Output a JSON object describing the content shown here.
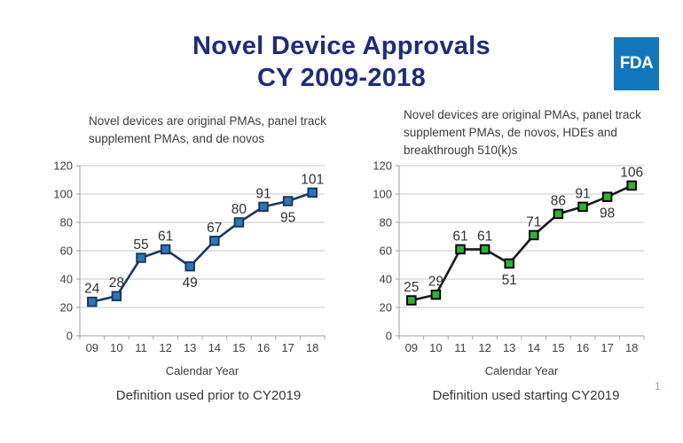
{
  "page": {
    "title_line1": "Novel Device Approvals",
    "title_line2": "CY 2009-2018",
    "page_number": "1"
  },
  "logo": {
    "text": "FDA"
  },
  "colors": {
    "title": "#1f2c7b",
    "logo_bg": "#1276bd",
    "grid": "#c9c9c9",
    "axis": "#9f9f9f",
    "tick_text": "#3f3f3f"
  },
  "chart_data": [
    {
      "type": "line",
      "title": "Novel devices are original PMAs, panel track supplement PMAs, and de novos",
      "categories": [
        "09",
        "10",
        "11",
        "12",
        "13",
        "14",
        "15",
        "16",
        "17",
        "18"
      ],
      "values": [
        24,
        28,
        55,
        61,
        49,
        67,
        80,
        91,
        95,
        101
      ],
      "xlabel": "Calendar Year",
      "ylim": [
        0,
        120
      ],
      "ytick_step": 20,
      "grid": true,
      "legend": "none",
      "line_color": "#1f3864",
      "marker_fill": "#2e75b6",
      "marker_stroke": "#17375e",
      "label_below_indices": [
        4,
        8
      ],
      "caption": "Definition used prior to CY2019"
    },
    {
      "type": "line",
      "title": "Novel devices are original PMAs, panel track supplement PMAs, de novos, HDEs and breakthrough 510(k)s",
      "categories": [
        "09",
        "10",
        "11",
        "12",
        "13",
        "14",
        "15",
        "16",
        "17",
        "18"
      ],
      "values": [
        25,
        29,
        61,
        61,
        51,
        71,
        86,
        91,
        98,
        106
      ],
      "xlabel": "Calendar Year",
      "ylim": [
        0,
        120
      ],
      "ytick_step": 20,
      "grid": true,
      "legend": "none",
      "line_color": "#1a1a1a",
      "marker_fill": "#2eb135",
      "marker_stroke": "#000000",
      "label_below_indices": [
        4,
        8
      ],
      "caption": "Definition used starting CY2019"
    }
  ]
}
